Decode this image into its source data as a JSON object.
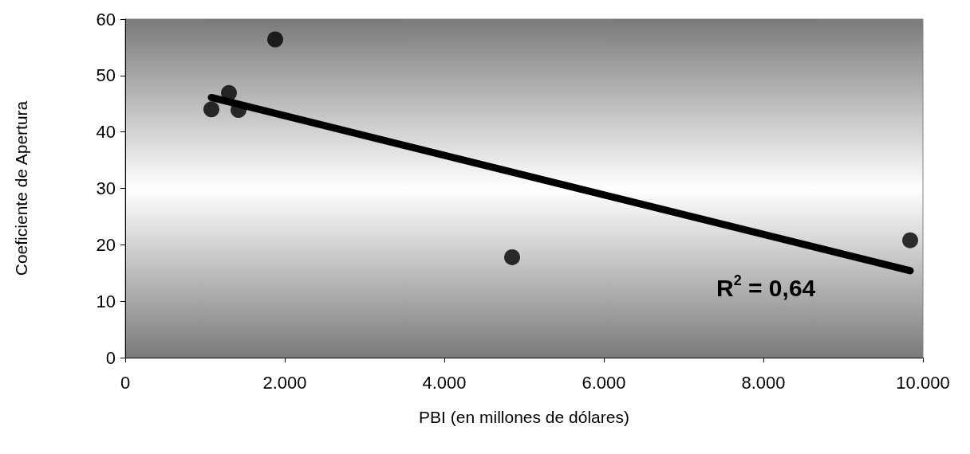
{
  "chart_data": {
    "type": "scatter",
    "xlabel": "PBI (en millones de dólares)",
    "ylabel": "Coeficiente de Apertura",
    "series": [
      {
        "color": "#000000",
        "x": [
          1080,
          1300,
          1420,
          1880,
          4850,
          9840
        ],
        "values": [
          44,
          46.9,
          43.9,
          56.4,
          17.8,
          20.8
        ]
      },
      {
        "type": "line",
        "marker": "none",
        "color": "#000000",
        "x": [
          1080,
          9840
        ],
        "values": [
          46.1,
          15.4
        ]
      }
    ],
    "xlim": [
      0,
      10000
    ],
    "xticks": [
      0,
      {
        "value": 2000,
        "label": "2.000"
      },
      {
        "value": 4000,
        "label": "4.000"
      },
      {
        "value": 6000,
        "label": "6.000"
      },
      {
        "value": 8000,
        "label": "8.000"
      },
      {
        "value": 10000,
        "label": "10.000"
      }
    ],
    "ylim": [
      0,
      60
    ],
    "yticks": [
      0,
      10,
      20,
      30,
      40,
      50,
      60
    ],
    "annotations": [
      "R$^{2}$ = 0,64"
    ],
    "grid": false,
    "marker": "circle",
    "line_style": "solid"
  }
}
